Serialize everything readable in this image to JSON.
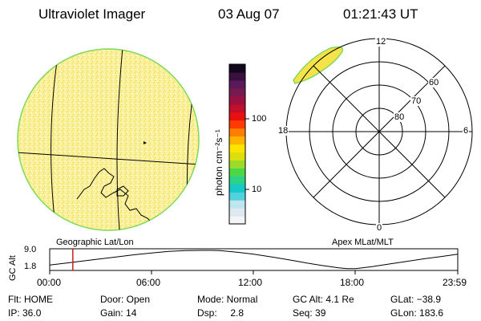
{
  "header": {
    "instrument": "Ultraviolet Imager",
    "date": "03 Aug 07",
    "time": "01:21:43 UT"
  },
  "colorbar": {
    "label": "photon cm⁻²s⁻¹",
    "ticks": [
      "100",
      "10"
    ],
    "scale": "log",
    "colors": [
      "#f4f4f4",
      "#dde8f0",
      "#bfe6ee",
      "#52d2dc",
      "#16c8c8",
      "#2cd28a",
      "#4ad84a",
      "#9cdc28",
      "#dcde10",
      "#ffe400",
      "#ffb400",
      "#ff8000",
      "#ff3c00",
      "#e81010",
      "#c0102c",
      "#9a1040",
      "#781a50",
      "#5a1a5a",
      "#3a103e",
      "#12081c"
    ]
  },
  "left_panel": {
    "label": "Geographic Lat/Lon",
    "fill_color": "#fbf09a",
    "edge_color": "#7fd85a"
  },
  "right_panel": {
    "label": "Apex MLat/MLT",
    "mlt_labels": {
      "top": "12",
      "bottom": "0",
      "left": "18",
      "right": "6"
    },
    "mlat_labels": [
      "60",
      "70",
      "80"
    ],
    "fill_color": "#f6e34a"
  },
  "altitude_plot": {
    "ylabel": "GC Alt",
    "yticks": [
      "9.0",
      "1.8"
    ],
    "xticks": [
      "00:00",
      "06:00",
      "12:00",
      "18:00",
      "23:59"
    ],
    "current_marker_hour": 1.36,
    "marker_color": "#c81e1e"
  },
  "chart_data": {
    "type": "line",
    "title": "",
    "xlabel": "",
    "ylabel": "GC Alt",
    "x": [
      0,
      1,
      2,
      3,
      4,
      5,
      6,
      7,
      8,
      9,
      9.5,
      10,
      11,
      12,
      13,
      14,
      15,
      16,
      17,
      17.5,
      18,
      19,
      20,
      21,
      22,
      23,
      24
    ],
    "y": [
      3.3,
      4.1,
      4.9,
      5.7,
      6.5,
      7.3,
      8.0,
      8.6,
      8.95,
      9.0,
      9.0,
      8.9,
      8.3,
      7.5,
      6.5,
      5.4,
      4.2,
      3.1,
      2.2,
      1.85,
      1.9,
      2.7,
      3.7,
      4.7,
      5.7,
      6.6,
      7.5
    ],
    "xlim": [
      0,
      24
    ],
    "ylim": [
      1.8,
      9.0
    ]
  },
  "status": {
    "row1": {
      "flt": "Flt: HOME",
      "door": "Door: Open",
      "mode": "Mode: Normal",
      "gcalt": "GC Alt: 4.1 Re",
      "glat": "GLat: −38.9"
    },
    "row2": {
      "ip": "IP: 36.0",
      "gain": "Gain: 14",
      "dsp": "Dsp:     2.8",
      "seq": "Seq: 39",
      "glon": "GLon: 183.6"
    }
  }
}
